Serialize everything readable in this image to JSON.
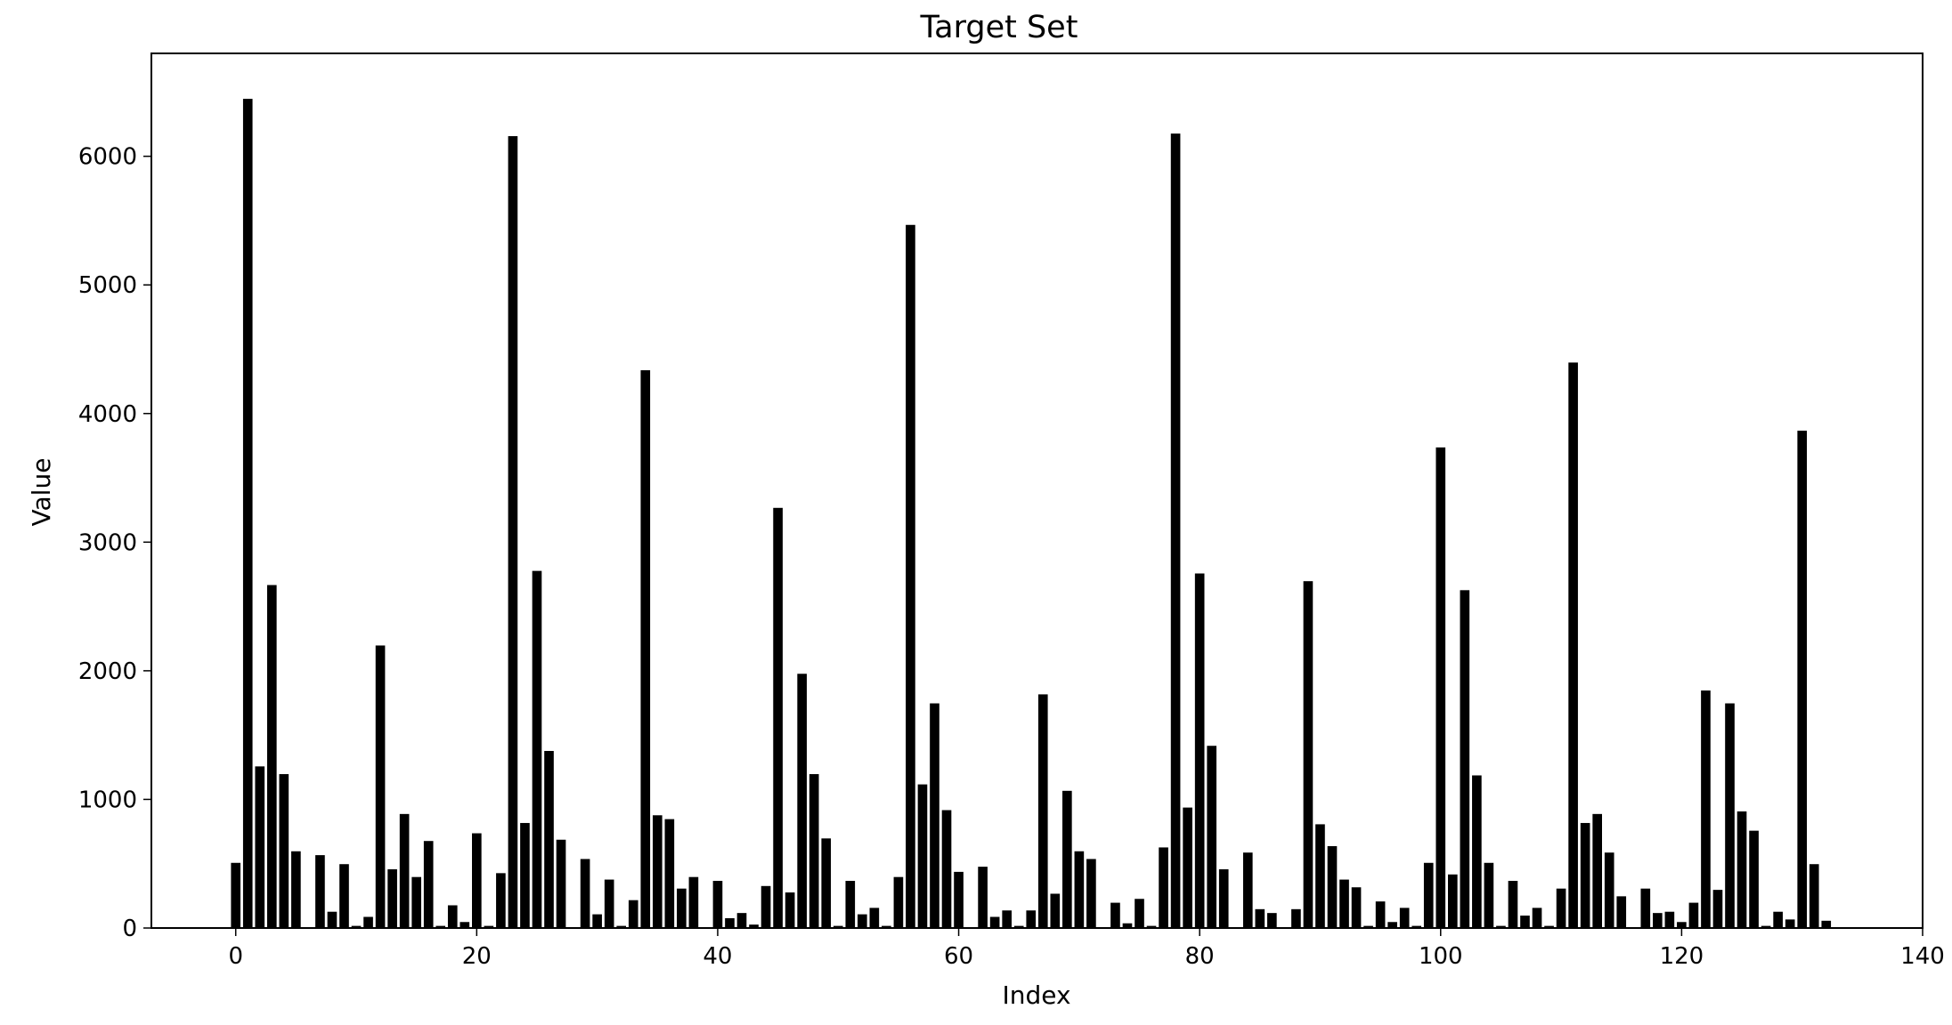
{
  "chart_data": {
    "type": "bar",
    "title": "Target Set",
    "xlabel": "Index",
    "ylabel": "Value",
    "xlim": [
      -7,
      140
    ],
    "ylim": [
      0,
      6800
    ],
    "xticks": [
      0,
      20,
      40,
      60,
      80,
      100,
      120,
      140
    ],
    "yticks": [
      0,
      1000,
      2000,
      3000,
      4000,
      5000,
      6000
    ],
    "grid": false,
    "bar_color": "#000000",
    "bar_edge_color": "#ffffff",
    "x": [
      0,
      1,
      2,
      3,
      4,
      5,
      6,
      7,
      8,
      9,
      10,
      11,
      12,
      13,
      14,
      15,
      16,
      17,
      18,
      19,
      20,
      21,
      22,
      23,
      24,
      25,
      26,
      27,
      28,
      29,
      30,
      31,
      32,
      33,
      34,
      35,
      36,
      37,
      38,
      39,
      40,
      41,
      42,
      43,
      44,
      45,
      46,
      47,
      48,
      49,
      50,
      51,
      52,
      53,
      54,
      55,
      56,
      57,
      58,
      59,
      60,
      61,
      62,
      63,
      64,
      65,
      66,
      67,
      68,
      69,
      70,
      71,
      72,
      73,
      74,
      75,
      76,
      77,
      78,
      79,
      80,
      81,
      82,
      83,
      84,
      85,
      86,
      87,
      88,
      89,
      90,
      91,
      92,
      93,
      94,
      95,
      96,
      97,
      98,
      99,
      100,
      101,
      102,
      103,
      104,
      105,
      106,
      107,
      108,
      109,
      110,
      111,
      112,
      113,
      114,
      115,
      116,
      117,
      118,
      119,
      120,
      121,
      122,
      123,
      124,
      125,
      126,
      127,
      128,
      129,
      130,
      131,
      132
    ],
    "values": [
      510,
      6450,
      1260,
      2670,
      1200,
      600,
      0,
      570,
      130,
      500,
      20,
      90,
      2200,
      460,
      890,
      400,
      680,
      20,
      180,
      50,
      740,
      20,
      430,
      6160,
      820,
      2780,
      1380,
      690,
      0,
      540,
      110,
      380,
      20,
      220,
      4340,
      880,
      850,
      310,
      400,
      0,
      370,
      80,
      120,
      30,
      330,
      3270,
      280,
      1980,
      1200,
      700,
      20,
      370,
      110,
      160,
      20,
      400,
      5470,
      1120,
      1750,
      920,
      440,
      0,
      480,
      90,
      140,
      20,
      140,
      1820,
      270,
      1070,
      600,
      540,
      0,
      200,
      40,
      230,
      20,
      630,
      6180,
      940,
      2760,
      1420,
      460,
      0,
      590,
      150,
      120,
      0,
      150,
      2700,
      810,
      640,
      380,
      320,
      20,
      210,
      50,
      160,
      20,
      510,
      3740,
      420,
      2630,
      1190,
      510,
      20,
      370,
      100,
      160,
      20,
      310,
      4400,
      820,
      890,
      590,
      250,
      0,
      310,
      120,
      130,
      50,
      200,
      1850,
      300,
      1750,
      910,
      760,
      20,
      130,
      70,
      3870,
      500,
      60
    ]
  }
}
